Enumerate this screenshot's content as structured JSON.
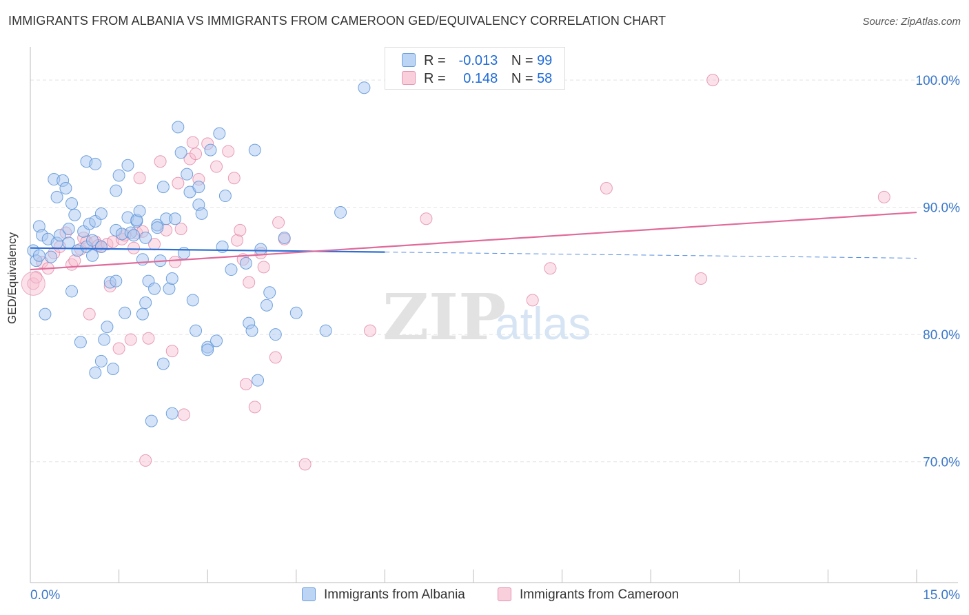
{
  "title": "IMMIGRANTS FROM ALBANIA VS IMMIGRANTS FROM CAMEROON GED/EQUIVALENCY CORRELATION CHART",
  "source": "Source: ZipAtlas.com",
  "watermark": {
    "zip": "ZIP",
    "atlas": "atlas"
  },
  "legend": {
    "r_label": "R =",
    "n_label": "N =",
    "albania": {
      "r": "-0.013",
      "n": "99"
    },
    "cameroon": {
      "r": "0.148",
      "n": "58"
    }
  },
  "colors": {
    "albania_fill": "#a9c8f0",
    "albania_stroke": "#5b93d8",
    "albania_line": "#2b6fd6",
    "cameroon_fill": "#f6bfd0",
    "cameroon_stroke": "#e07fa3",
    "cameroon_line": "#e06a99",
    "tick_label": "#3a78c9"
  },
  "chart_data": {
    "type": "scatter",
    "title": "IMMIGRANTS FROM ALBANIA VS IMMIGRANTS FROM CAMEROON GED/EQUIVALENCY CORRELATION CHART",
    "xlabel": "",
    "ylabel": "GED/Equivalency",
    "xlim": [
      0,
      15
    ],
    "ylim": [
      60.5,
      102.5
    ],
    "x_tick_labels": [
      "0.0%",
      "15.0%"
    ],
    "y_ticks": [
      70,
      80,
      90,
      100
    ],
    "y_tick_labels": [
      "70.0%",
      "80.0%",
      "90.0%",
      "100.0%"
    ],
    "grid": true,
    "legend_placement": "top-center",
    "series": [
      {
        "name": "Immigrants from Albania",
        "trend": {
          "x": [
            0,
            15
          ],
          "y": [
            86.8,
            86.0
          ],
          "solid_until_x": 6.0
        },
        "points": [
          [
            0.05,
            86.6
          ],
          [
            0.1,
            85.8
          ],
          [
            0.15,
            88.5
          ],
          [
            0.2,
            87.8
          ],
          [
            0.25,
            81.6
          ],
          [
            0.3,
            87.5
          ],
          [
            0.35,
            86.1
          ],
          [
            0.4,
            92.2
          ],
          [
            0.45,
            87.2
          ],
          [
            0.5,
            87.8
          ],
          [
            0.45,
            90.8
          ],
          [
            0.55,
            92.1
          ],
          [
            0.6,
            91.5
          ],
          [
            0.65,
            87.2
          ],
          [
            0.65,
            88.3
          ],
          [
            0.7,
            83.4
          ],
          [
            0.7,
            90.3
          ],
          [
            0.75,
            89.4
          ],
          [
            0.8,
            86.6
          ],
          [
            0.85,
            79.4
          ],
          [
            0.9,
            88.1
          ],
          [
            0.95,
            86.9
          ],
          [
            0.95,
            93.6
          ],
          [
            1.0,
            88.7
          ],
          [
            1.05,
            86.2
          ],
          [
            1.05,
            87.4
          ],
          [
            1.1,
            88.9
          ],
          [
            1.1,
            77.0
          ],
          [
            1.1,
            93.4
          ],
          [
            1.2,
            77.9
          ],
          [
            1.2,
            89.5
          ],
          [
            1.2,
            86.9
          ],
          [
            1.25,
            79.6
          ],
          [
            1.3,
            80.6
          ],
          [
            1.35,
            84.1
          ],
          [
            1.4,
            77.3
          ],
          [
            1.45,
            88.2
          ],
          [
            1.45,
            91.3
          ],
          [
            1.5,
            92.5
          ],
          [
            1.55,
            87.9
          ],
          [
            1.6,
            81.7
          ],
          [
            1.65,
            93.3
          ],
          [
            1.65,
            89.2
          ],
          [
            1.7,
            88.0
          ],
          [
            1.75,
            87.8
          ],
          [
            1.8,
            88.9
          ],
          [
            1.8,
            89.0
          ],
          [
            1.85,
            89.7
          ],
          [
            1.9,
            81.6
          ],
          [
            1.9,
            85.9
          ],
          [
            1.95,
            87.6
          ],
          [
            1.95,
            82.5
          ],
          [
            2.0,
            84.2
          ],
          [
            2.05,
            73.2
          ],
          [
            2.1,
            83.6
          ],
          [
            2.15,
            88.6
          ],
          [
            2.15,
            88.4
          ],
          [
            2.2,
            85.8
          ],
          [
            2.25,
            91.6
          ],
          [
            2.25,
            77.7
          ],
          [
            2.3,
            89.1
          ],
          [
            2.35,
            83.6
          ],
          [
            2.4,
            84.4
          ],
          [
            2.4,
            73.8
          ],
          [
            2.45,
            89.1
          ],
          [
            2.5,
            96.3
          ],
          [
            2.55,
            94.3
          ],
          [
            2.6,
            86.4
          ],
          [
            2.65,
            92.6
          ],
          [
            2.7,
            91.2
          ],
          [
            2.75,
            82.7
          ],
          [
            2.8,
            80.3
          ],
          [
            2.85,
            90.2
          ],
          [
            2.85,
            91.6
          ],
          [
            2.9,
            89.5
          ],
          [
            3.0,
            79.0
          ],
          [
            3.0,
            78.8
          ],
          [
            3.05,
            94.5
          ],
          [
            3.15,
            79.5
          ],
          [
            3.2,
            95.8
          ],
          [
            3.25,
            86.9
          ],
          [
            3.3,
            90.9
          ],
          [
            3.4,
            85.1
          ],
          [
            3.65,
            85.6
          ],
          [
            3.7,
            80.9
          ],
          [
            3.75,
            80.3
          ],
          [
            3.8,
            94.5
          ],
          [
            3.85,
            76.4
          ],
          [
            3.9,
            86.7
          ],
          [
            4.0,
            82.3
          ],
          [
            4.05,
            83.3
          ],
          [
            4.15,
            80.0
          ],
          [
            4.3,
            87.6
          ],
          [
            4.5,
            81.7
          ],
          [
            5.0,
            80.3
          ],
          [
            5.25,
            89.6
          ],
          [
            5.65,
            99.4
          ],
          [
            0.15,
            86.2
          ],
          [
            1.45,
            84.2
          ]
        ]
      },
      {
        "name": "Immigrants from Cameroon",
        "trend": {
          "x": [
            0,
            15
          ],
          "y": [
            85.1,
            89.6
          ]
        },
        "points": [
          [
            0.05,
            84.0
          ],
          [
            0.1,
            84.5
          ],
          [
            0.2,
            85.7
          ],
          [
            0.3,
            85.2
          ],
          [
            0.4,
            86.4
          ],
          [
            0.5,
            86.9
          ],
          [
            0.6,
            88.0
          ],
          [
            0.7,
            85.5
          ],
          [
            0.75,
            85.8
          ],
          [
            0.85,
            86.7
          ],
          [
            0.9,
            87.6
          ],
          [
            0.95,
            87.3
          ],
          [
            1.0,
            81.6
          ],
          [
            1.1,
            87.3
          ],
          [
            1.15,
            87.0
          ],
          [
            1.2,
            86.9
          ],
          [
            1.3,
            87.1
          ],
          [
            1.35,
            83.8
          ],
          [
            1.4,
            87.3
          ],
          [
            1.5,
            78.9
          ],
          [
            1.55,
            87.5
          ],
          [
            1.6,
            87.8
          ],
          [
            1.7,
            79.6
          ],
          [
            1.75,
            86.8
          ],
          [
            1.8,
            88.0
          ],
          [
            1.85,
            92.3
          ],
          [
            1.9,
            88.1
          ],
          [
            1.95,
            70.1
          ],
          [
            2.0,
            79.7
          ],
          [
            2.1,
            87.1
          ],
          [
            2.2,
            93.6
          ],
          [
            2.3,
            88.2
          ],
          [
            2.4,
            78.7
          ],
          [
            2.45,
            85.7
          ],
          [
            2.5,
            91.9
          ],
          [
            2.55,
            88.3
          ],
          [
            2.6,
            73.7
          ],
          [
            2.7,
            93.8
          ],
          [
            2.75,
            95.1
          ],
          [
            2.8,
            94.2
          ],
          [
            2.85,
            92.2
          ],
          [
            3.0,
            95.0
          ],
          [
            3.15,
            93.2
          ],
          [
            3.35,
            94.4
          ],
          [
            3.45,
            92.3
          ],
          [
            3.5,
            87.4
          ],
          [
            3.55,
            88.2
          ],
          [
            3.6,
            85.9
          ],
          [
            3.65,
            76.1
          ],
          [
            3.7,
            84.1
          ],
          [
            3.8,
            74.3
          ],
          [
            3.9,
            86.4
          ],
          [
            3.95,
            85.3
          ],
          [
            4.15,
            78.2
          ],
          [
            4.2,
            88.8
          ],
          [
            4.3,
            87.5
          ],
          [
            4.65,
            69.8
          ],
          [
            5.75,
            80.3
          ]
        ],
        "extra_points": [
          [
            6.7,
            89.1
          ],
          [
            8.5,
            82.7
          ],
          [
            8.8,
            85.2
          ],
          [
            9.75,
            91.5
          ],
          [
            11.35,
            84.4
          ],
          [
            11.55,
            100.0
          ],
          [
            14.45,
            90.8
          ]
        ]
      }
    ]
  },
  "bottom_legend": {
    "albania": "Immigrants from Albania",
    "cameroon": "Immigrants from Cameroon"
  }
}
